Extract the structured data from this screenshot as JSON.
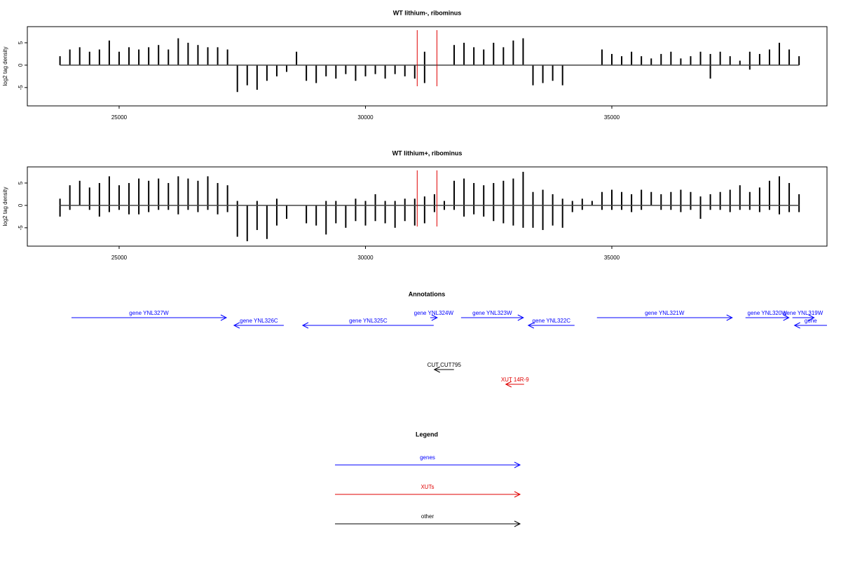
{
  "chart_data": [
    {
      "type": "bar",
      "title": "WT lithium-, ribominus",
      "y_label": "log2 tag density",
      "xlim": [
        23137,
        39367
      ],
      "ylim": [
        -9.1,
        8.6
      ],
      "xticks": [
        25000,
        30000,
        35000
      ],
      "yticks": [
        -5,
        0,
        5
      ],
      "x": [
        23800,
        24000,
        24200,
        24400,
        24600,
        24800,
        25000,
        25200,
        25400,
        25600,
        25800,
        26000,
        26200,
        26400,
        26600,
        26800,
        27000,
        27200,
        27400,
        27600,
        27800,
        28000,
        28200,
        28400,
        28600,
        28800,
        29000,
        29200,
        29400,
        29600,
        29800,
        30000,
        30200,
        30400,
        30600,
        30800,
        31000,
        31200,
        31400,
        31600,
        31800,
        32000,
        32200,
        32400,
        32600,
        32800,
        33000,
        33200,
        33400,
        33600,
        33800,
        34000,
        34200,
        34400,
        34600,
        34800,
        35000,
        35200,
        35400,
        35600,
        35800,
        36000,
        36200,
        36400,
        36600,
        36800,
        37000,
        37200,
        37400,
        37600,
        37800,
        38000,
        38200,
        38400,
        38600,
        38800
      ],
      "series": [
        {
          "color": "#000000",
          "values": [
            2,
            3.5,
            4,
            3,
            3.5,
            5.5,
            3,
            4,
            3.5,
            4,
            4.5,
            3.5,
            6,
            5,
            4.5,
            4,
            4,
            3.5,
            null,
            null,
            null,
            null,
            null,
            null,
            3,
            null,
            null,
            null,
            null,
            null,
            null,
            null,
            null,
            null,
            null,
            null,
            null,
            3,
            null,
            null,
            4.5,
            5,
            4,
            3.5,
            5,
            4,
            5.5,
            6,
            null,
            null,
            null,
            null,
            null,
            null,
            null,
            3.5,
            2.5,
            2,
            3,
            2,
            1.5,
            2.5,
            3,
            1.5,
            2,
            3,
            2.5,
            3,
            2,
            1,
            3,
            2.5,
            3.5,
            5,
            3.5,
            2
          ]
        },
        {
          "color": "#000000",
          "values": [
            null,
            null,
            null,
            null,
            null,
            null,
            null,
            null,
            null,
            null,
            null,
            null,
            null,
            null,
            null,
            null,
            null,
            null,
            -6,
            -4.5,
            -5.5,
            -3.5,
            -2.5,
            -1.5,
            null,
            -3.5,
            -4,
            -2.5,
            -3,
            -2,
            -3.5,
            -2.5,
            -2,
            -3,
            -2,
            -2.5,
            -3,
            -4,
            null,
            null,
            null,
            null,
            null,
            null,
            null,
            null,
            null,
            null,
            -4.5,
            -4,
            -3.5,
            -4.5,
            null,
            null,
            null,
            null,
            null,
            null,
            null,
            null,
            null,
            null,
            null,
            null,
            null,
            null,
            -3,
            null,
            null,
            null,
            -1,
            null,
            null,
            null,
            null,
            null
          ]
        }
      ],
      "markers": {
        "x": [
          31050,
          31450
        ],
        "color": "#e00000"
      }
    },
    {
      "type": "bar",
      "title": "WT lithium+, ribominus",
      "y_label": "log2 tag density",
      "xlim": [
        23137,
        39367
      ],
      "ylim": [
        -9.1,
        8.6
      ],
      "xticks": [
        25000,
        30000,
        35000
      ],
      "yticks": [
        -5,
        0,
        5
      ],
      "x": [
        23800,
        24000,
        24200,
        24400,
        24600,
        24800,
        25000,
        25200,
        25400,
        25600,
        25800,
        26000,
        26200,
        26400,
        26600,
        26800,
        27000,
        27200,
        27400,
        27600,
        27800,
        28000,
        28200,
        28400,
        28600,
        28800,
        29000,
        29200,
        29400,
        29600,
        29800,
        30000,
        30200,
        30400,
        30600,
        30800,
        31000,
        31200,
        31400,
        31600,
        31800,
        32000,
        32200,
        32400,
        32600,
        32800,
        33000,
        33200,
        33400,
        33600,
        33800,
        34000,
        34200,
        34400,
        34600,
        34800,
        35000,
        35200,
        35400,
        35600,
        35800,
        36000,
        36200,
        36400,
        36600,
        36800,
        37000,
        37200,
        37400,
        37600,
        37800,
        38000,
        38200,
        38400,
        38600,
        38800
      ],
      "series": [
        {
          "color": "#000000",
          "values": [
            1.5,
            4.5,
            5.5,
            4,
            5,
            6.5,
            4.5,
            5,
            6,
            5.5,
            6,
            5,
            6.5,
            6,
            5.5,
            6.5,
            5,
            4.5,
            1,
            null,
            1,
            null,
            1.5,
            null,
            null,
            null,
            null,
            1,
            1,
            null,
            1.5,
            1,
            2.5,
            1,
            1,
            1.5,
            1.5,
            2,
            2.5,
            1,
            5.5,
            6,
            5,
            4.5,
            5,
            5.5,
            6,
            7.5,
            3,
            3.5,
            2.5,
            1.5,
            1,
            1.5,
            1,
            3,
            3.5,
            3,
            2.5,
            3.5,
            3,
            2.5,
            3,
            3.5,
            3,
            2,
            2.5,
            3,
            3.5,
            4.5,
            3,
            4,
            5.5,
            6.5,
            5,
            2.5
          ]
        },
        {
          "color": "#000000",
          "values": [
            -2.5,
            -1,
            null,
            -1,
            -2.5,
            -1.5,
            -1,
            -2,
            -2,
            -1.5,
            -1,
            -1,
            -2,
            -1,
            -1.5,
            -1,
            -2,
            -1.5,
            -7,
            -8,
            -5.5,
            -7.5,
            -4.5,
            -3,
            null,
            -4,
            -4.5,
            -6.5,
            -4,
            -5,
            -3.5,
            -4.5,
            -3.5,
            -4,
            -5,
            -3.5,
            -4.5,
            -4,
            -1.5,
            -1,
            -1,
            -2.5,
            -2,
            -2.5,
            -3.5,
            -4,
            -4.5,
            -5,
            -5,
            -5.5,
            -4.5,
            -5,
            -1.5,
            -1,
            null,
            -1,
            -1,
            -1,
            -1.5,
            -1,
            null,
            -1,
            -1,
            -1.5,
            -1,
            -3,
            -1,
            -1,
            -1.5,
            -1,
            -1,
            -1.5,
            -1,
            -2,
            -1.5,
            -1.5
          ]
        }
      ],
      "markers": {
        "x": [
          31050,
          31450
        ],
        "color": "#e00000"
      }
    },
    {
      "type": "annotation",
      "title": "Annotations",
      "xlim": [
        23137,
        39367
      ],
      "features": [
        {
          "label": "gene YNL327W",
          "start": 24033,
          "end": 27176,
          "strand": "+",
          "color": "#0000ff"
        },
        {
          "label": "gene YNL326C",
          "start": 27332,
          "end": 28342,
          "strand": "-",
          "color": "#0000ff"
        },
        {
          "label": "gene YNL325C",
          "start": 28726,
          "end": 31385,
          "strand": "-",
          "color": "#0000ff"
        },
        {
          "label": "gene YNL324W",
          "start": 31314,
          "end": 31456,
          "strand": "+",
          "color": "#0000ff"
        },
        {
          "label": "gene YNL323W",
          "start": 31940,
          "end": 33205,
          "strand": "+",
          "color": "#0000ff"
        },
        {
          "label": "gene YNL322C",
          "start": 33305,
          "end": 34243,
          "strand": "-",
          "color": "#0000ff"
        },
        {
          "label": "gene YNL321W",
          "start": 34698,
          "end": 37443,
          "strand": "+",
          "color": "#0000ff"
        },
        {
          "label": "gene YNL320W",
          "start": 37713,
          "end": 38594,
          "strand": "+",
          "color": "#0000ff"
        },
        {
          "label": "gene YNL319W",
          "start": 38665,
          "end": 39106,
          "strand": "+",
          "color": "#0000ff"
        },
        {
          "label": "gene",
          "start": 38708,
          "end": 39367,
          "strand": "-",
          "color": "#0000ff"
        },
        {
          "label": "CUT CUT795",
          "start": 31398,
          "end": 31796,
          "strand": "-",
          "color": "#000000"
        },
        {
          "label": "XUT 14R-9",
          "start": 32849,
          "end": 33219,
          "strand": "-",
          "color": "#e00000"
        }
      ],
      "legend": {
        "title": "Legend",
        "items": [
          {
            "label": "genes",
            "color": "#0000ff"
          },
          {
            "label": "XUTs",
            "color": "#e00000"
          },
          {
            "label": "other",
            "color": "#000000"
          }
        ]
      }
    }
  ]
}
